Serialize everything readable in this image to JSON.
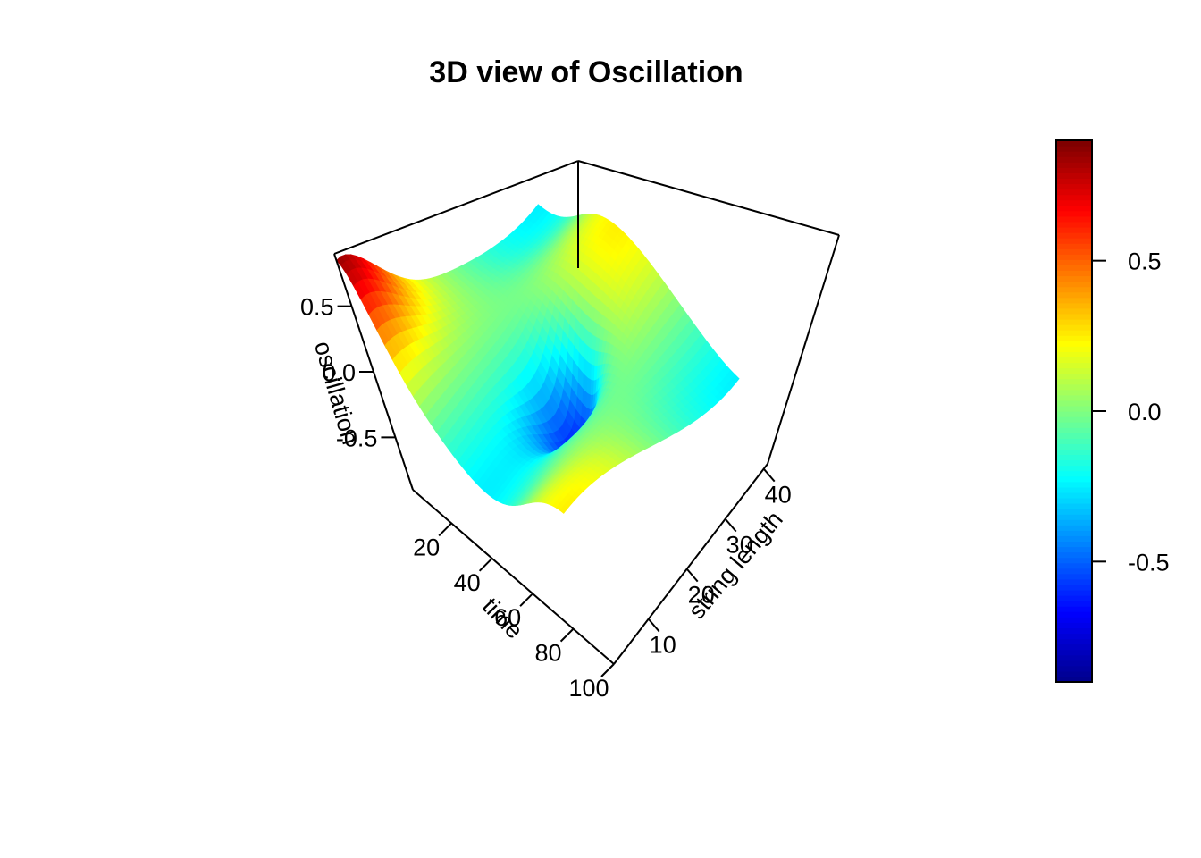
{
  "chart_data": {
    "type": "surface3d",
    "title": "3D view of Oscillation",
    "xlabel": "string length",
    "ylabel": "time",
    "zlabel": "oscillation",
    "xlim": [
      1,
      41
    ],
    "ylim": [
      1,
      100
    ],
    "zlim": [
      -0.9,
      0.9
    ],
    "x_ticks": [
      "10",
      "20",
      "30",
      "40"
    ],
    "y_ticks": [
      "20",
      "40",
      "60",
      "80",
      "100"
    ],
    "z_ticks": [
      "0.5",
      "0.0",
      "-0.5"
    ],
    "surface": {
      "description_of_shape": "standing wave: z = cos(pi*(x-1)/40 + ...)",
      "peak": {
        "x": 1,
        "y": 1,
        "z": 0.88
      },
      "trough": {
        "x": 21,
        "y": 52,
        "z": -0.88
      }
    },
    "colorbar": {
      "ticks": [
        "0.5",
        "0.0",
        "-0.5"
      ],
      "range": [
        -0.9,
        0.9
      ],
      "palette": [
        "#00008F",
        "#0000FF",
        "#0080FF",
        "#00FFFF",
        "#80FF80",
        "#FFFF00",
        "#FF8000",
        "#FF0000",
        "#800000"
      ]
    }
  }
}
